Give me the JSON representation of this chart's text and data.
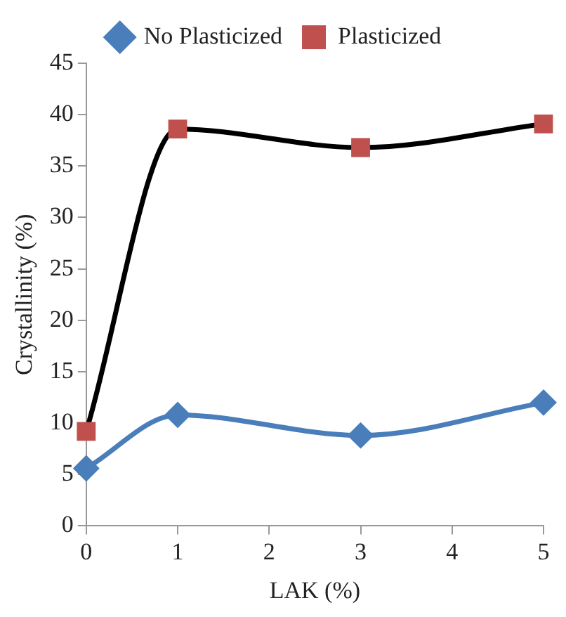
{
  "chart_data": {
    "type": "line",
    "xlabel": "LAK (%)",
    "ylabel": "Crystallinity (%)",
    "xlim": [
      0,
      5
    ],
    "xticks": [
      0,
      1,
      2,
      3,
      4,
      5
    ],
    "ylim": [
      0,
      45
    ],
    "yticks": [
      0,
      5,
      10,
      15,
      20,
      25,
      30,
      35,
      40,
      45
    ],
    "grid": false,
    "legend": "top",
    "series": [
      {
        "name": "No Plasticized",
        "color": "#4a7ebb",
        "marker": "diamond",
        "x": [
          0,
          1,
          3,
          5
        ],
        "values": [
          5.6,
          10.8,
          8.8,
          12.0
        ]
      },
      {
        "name": "Plasticized",
        "color": "#000000",
        "colors": [
          "#c0504d",
          "#c0504d",
          "#c0504d",
          "#c0504d"
        ],
        "marker": "square",
        "x": [
          0,
          1,
          3,
          5
        ],
        "values": [
          9.2,
          38.6,
          36.8,
          39.1
        ]
      }
    ]
  }
}
